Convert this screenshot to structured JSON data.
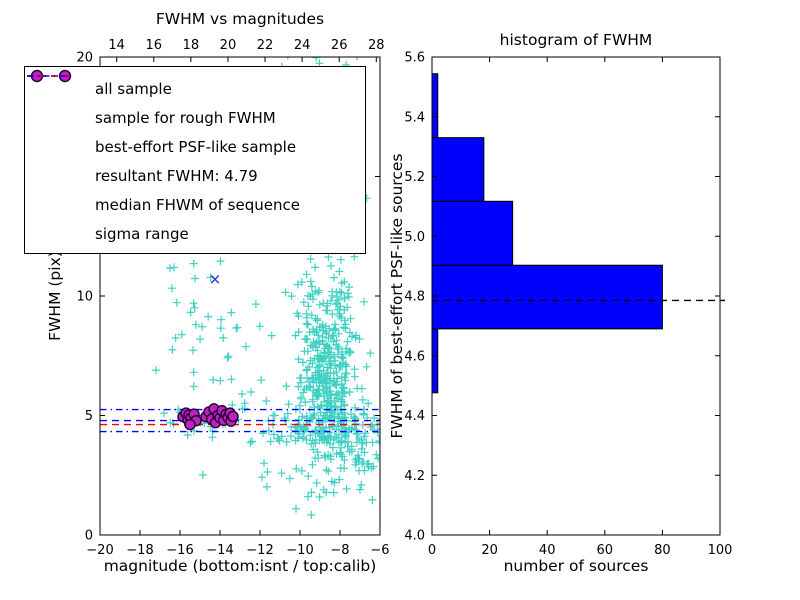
{
  "figure_bg": "#ffffff",
  "chart_data": [
    {
      "id": "fwhm-vs-magnitudes",
      "type": "scatter",
      "title": "FWHM vs magnitudes",
      "xlabel": "magnitude (bottom:isnt / top:calib)",
      "ylabel": "FWHM (pix)",
      "xlim": [
        -20,
        -6
      ],
      "ylim": [
        0,
        20
      ],
      "grid": false,
      "x_ticks": {
        "values": [
          -20,
          -18,
          -16,
          -14,
          -12,
          -10,
          -8,
          -6
        ],
        "labels": [
          "−20",
          "−18",
          "−16",
          "−14",
          "−12",
          "−10",
          "−8",
          "−6"
        ]
      },
      "y_ticks": {
        "values": [
          0,
          5,
          10,
          15,
          20
        ],
        "labels": [
          "0",
          "5",
          "10",
          "15",
          "20"
        ]
      },
      "top_axis": {
        "lim": [
          13.1,
          28.2
        ],
        "values": [
          14,
          16,
          18,
          20,
          22,
          24,
          26,
          28
        ],
        "labels": [
          "14",
          "16",
          "18",
          "20",
          "22",
          "24",
          "26",
          "28"
        ]
      },
      "seed": 7,
      "series": [
        {
          "name": "all sample",
          "marker": "plus",
          "color": "#40d0c4",
          "clusters": [
            {
              "cx": -8.6,
              "cy": 7.2,
              "sx": 0.7,
              "sy": 2.4,
              "n": 400
            },
            {
              "cx": -9.2,
              "cy": 16.8,
              "sx": 0.85,
              "sy": 2.0,
              "n": 90
            },
            {
              "cx": -8.6,
              "cy": 4.6,
              "sx": 1.5,
              "sy": 0.45,
              "n": 130
            },
            {
              "cx": -13.6,
              "cy": 7.6,
              "sx": 1.7,
              "sy": 2.4,
              "n": 42
            },
            {
              "cx": -6.9,
              "cy": 3.7,
              "sx": 0.6,
              "sy": 0.8,
              "n": 38
            },
            {
              "cx": -9.6,
              "cy": 2.3,
              "sx": 1.6,
              "sy": 0.5,
              "n": 16
            },
            {
              "cx": -15.8,
              "cy": 10.4,
              "sx": 0.7,
              "sy": 1.2,
              "n": 10
            },
            {
              "cx": -14.8,
              "cy": 4.8,
              "sx": 1.3,
              "sy": 0.35,
              "n": 25
            }
          ],
          "points": [
            [
              -16.3,
              11.2
            ],
            [
              -12.4,
              13.5
            ],
            [
              -10.9,
              19.6
            ],
            [
              -7.4,
              8.3
            ],
            [
              -6.3,
              4.4
            ],
            [
              -6.1,
              3.2
            ],
            [
              -17.2,
              6.9
            ],
            [
              -16.8,
              5.1
            ],
            [
              -11.8,
              3.0
            ],
            [
              -12.9,
              5.9
            ],
            [
              -10.2,
              1.1
            ],
            [
              -7.0,
              1.9
            ]
          ]
        },
        {
          "name": "sample for rough FWHM",
          "marker": "x",
          "color": "#3333cc",
          "points": [
            [
              -14.25,
              10.7
            ],
            [
              -15.6,
              5.0
            ],
            [
              -15.2,
              4.85
            ],
            [
              -14.4,
              4.9
            ],
            [
              -13.8,
              5.1
            ],
            [
              -13.5,
              4.95
            ]
          ]
        },
        {
          "name": "best-effort PSF-like sample",
          "marker": "circle",
          "color": "#c020c0",
          "edge": "#220033",
          "points": [
            [
              -15.85,
              4.95
            ],
            [
              -15.7,
              5.1
            ],
            [
              -15.6,
              4.82
            ],
            [
              -15.55,
              5.02
            ],
            [
              -15.45,
              4.9
            ],
            [
              -15.3,
              5.06
            ],
            [
              -15.2,
              4.78
            ],
            [
              -15.5,
              4.62
            ],
            [
              -14.7,
              4.95
            ],
            [
              -14.55,
              5.15
            ],
            [
              -14.42,
              4.85
            ],
            [
              -14.3,
              5.28
            ],
            [
              -14.22,
              4.7
            ],
            [
              -14.1,
              5.0
            ],
            [
              -14.0,
              4.9
            ],
            [
              -13.9,
              5.2
            ],
            [
              -13.82,
              4.8
            ],
            [
              -13.7,
              5.05
            ],
            [
              -13.6,
              4.92
            ],
            [
              -13.5,
              5.1
            ],
            [
              -13.45,
              4.76
            ],
            [
              -13.35,
              4.96
            ]
          ]
        }
      ],
      "ref_lines": [
        {
          "name": "resultant FWHM: 4.79",
          "y": [
            4.79
          ],
          "style": "dashed",
          "color": "#0000ff"
        },
        {
          "name": "median FHWM of sequence",
          "y": [
            4.62
          ],
          "style": "dashed",
          "color": "#ff0000"
        },
        {
          "name": "sigma range",
          "y": [
            4.33,
            5.25
          ],
          "style": "dashdot",
          "color": "#0000ff"
        }
      ],
      "legend": {
        "position": "upper left",
        "items": [
          {
            "label": "all sample",
            "type": "plus",
            "color": "#40d0c4"
          },
          {
            "label": "sample for rough FWHM",
            "type": "x",
            "color": "#3333cc"
          },
          {
            "label": "best-effort PSF-like sample",
            "type": "circle",
            "color": "#c020c0",
            "edge": "#220033"
          },
          {
            "label": "resultant FWHM: 4.79",
            "type": "dashed",
            "color": "#0000ff"
          },
          {
            "label": "median FHWM of sequence",
            "type": "dashed",
            "color": "#ff0000"
          },
          {
            "label": "sigma range",
            "type": "dashdot",
            "color": "#0000ff"
          }
        ]
      }
    },
    {
      "id": "histogram-of-fwhm",
      "type": "bar",
      "orientation": "horizontal",
      "title": "histogram of FWHM",
      "xlabel": "number of sources",
      "ylabel": "FWHM of best-effort PSF-like sources",
      "xlim": [
        0,
        100
      ],
      "ylim": [
        4.0,
        5.6
      ],
      "x_ticks": {
        "values": [
          0,
          20,
          40,
          60,
          80,
          100
        ],
        "labels": [
          "0",
          "20",
          "40",
          "60",
          "80",
          "100"
        ]
      },
      "y_ticks": {
        "values": [
          4.0,
          4.2,
          4.4,
          4.6,
          4.8,
          5.0,
          5.2,
          5.4,
          5.6
        ],
        "labels": [
          "4.0",
          "4.2",
          "4.4",
          "4.6",
          "4.8",
          "5.0",
          "5.2",
          "5.4",
          "5.6"
        ]
      },
      "bin_edges": [
        4.476,
        4.69,
        4.903,
        5.117,
        5.33,
        5.544
      ],
      "values": [
        2,
        80,
        28,
        18,
        2
      ],
      "bar_color": "#0000ff",
      "bar_edge": "#000000",
      "ref_line": {
        "y": 4.785,
        "style": "dashed",
        "color": "#000000"
      }
    }
  ]
}
